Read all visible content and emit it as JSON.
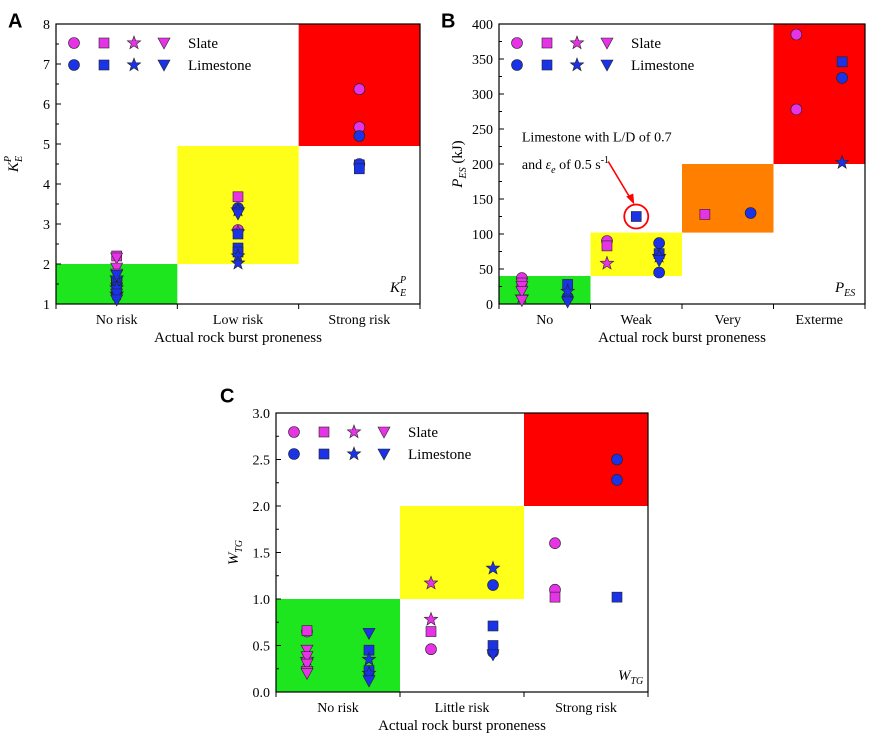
{
  "colors": {
    "slate": "#e633e6",
    "limestone": "#1a33e6",
    "green": "#1ee61e",
    "yellow": "#ffff1a",
    "orange": "#ff8000",
    "red": "#ff0000",
    "annotation": "#ff0000"
  },
  "legend_labels": [
    "Slate",
    "Limestone"
  ],
  "x_title": "Actual rock burst proneness",
  "chart_data": [
    {
      "panel": "A",
      "type": "scatter",
      "categories": [
        "No risk",
        "Low risk",
        "Strong risk"
      ],
      "ylim": [
        1,
        8
      ],
      "yticks": [
        "1",
        "2",
        "3",
        "4",
        "5",
        "6",
        "7",
        "8"
      ],
      "ytick_values": [
        1,
        2,
        3,
        4,
        5,
        6,
        7,
        8
      ],
      "ylabel_base": "K",
      "ylabel_sub": "E",
      "ylabel_sup": "P",
      "corner_base": "K",
      "corner_sub": "E",
      "corner_sup": "P",
      "regions": [
        {
          "x0": 0,
          "x1": 1,
          "y0": 1,
          "y1": 2,
          "color": "green"
        },
        {
          "x0": 1,
          "x1": 2,
          "y0": 2,
          "y1": 4.95,
          "color": "yellow"
        },
        {
          "x0": 2,
          "x1": 3,
          "y0": 4.95,
          "y1": 8,
          "color": "red"
        }
      ],
      "series": [
        {
          "name": "Slate",
          "marker": "circle",
          "points": [
            [
              0.5,
              1.6
            ],
            [
              1.5,
              2.85
            ],
            [
              2.5,
              6.37
            ],
            [
              2.5,
              5.42
            ]
          ]
        },
        {
          "name": "Slate",
          "marker": "square",
          "points": [
            [
              0.5,
              2.2
            ],
            [
              1.5,
              3.68
            ],
            [
              2.5,
              4.48
            ]
          ]
        },
        {
          "name": "Slate",
          "marker": "star",
          "points": [
            [
              0.5,
              1.25
            ],
            [
              1.5,
              3.35
            ],
            [
              1.5,
              2.8
            ]
          ]
        },
        {
          "name": "Slate",
          "marker": "triangle",
          "points": [
            [
              0.5,
              2.15
            ],
            [
              0.5,
              1.9
            ],
            [
              0.5,
              1.75
            ],
            [
              0.5,
              1.55
            ],
            [
              0.5,
              1.4
            ],
            [
              0.5,
              1.15
            ]
          ]
        },
        {
          "name": "Limestone",
          "marker": "circle",
          "points": [
            [
              1.5,
              3.4
            ],
            [
              2.5,
              5.2
            ],
            [
              2.5,
              4.5
            ],
            [
              0.5,
              1.5
            ]
          ]
        },
        {
          "name": "Limestone",
          "marker": "square",
          "points": [
            [
              0.5,
              1.55
            ],
            [
              0.5,
              1.35
            ],
            [
              1.5,
              2.75
            ],
            [
              1.5,
              2.4
            ],
            [
              1.5,
              2.3
            ],
            [
              2.5,
              4.38
            ]
          ]
        },
        {
          "name": "Limestone",
          "marker": "star",
          "points": [
            [
              0.5,
              1.65
            ],
            [
              0.5,
              1.4
            ],
            [
              1.5,
              3.35
            ],
            [
              1.5,
              2.2
            ],
            [
              1.5,
              2.02
            ]
          ]
        },
        {
          "name": "Limestone",
          "marker": "triangle",
          "points": [
            [
              0.5,
              1.72
            ],
            [
              0.5,
              1.25
            ],
            [
              0.5,
              1.1
            ],
            [
              1.5,
              3.25
            ]
          ]
        }
      ]
    },
    {
      "panel": "B",
      "type": "scatter",
      "categories": [
        "No",
        "Weak",
        "Very",
        "Exterme"
      ],
      "ylim": [
        0,
        400
      ],
      "yticks": [
        "0",
        "50",
        "100",
        "150",
        "200",
        "250",
        "300",
        "350",
        "400"
      ],
      "ytick_values": [
        0,
        50,
        100,
        150,
        200,
        250,
        300,
        350,
        400
      ],
      "ylabel_base": "P",
      "ylabel_sub": "ES",
      "ylabel_unit": " (kJ)",
      "corner_base": "P",
      "corner_sub": "ES",
      "annotation": {
        "line1": "Limestone with L/D of 0.7",
        "line2_pre": "and ",
        "line2_sym": "ε",
        "line2_sub": "e",
        "line2_mid": " of 0.5 s",
        "line2_sup": "-1",
        "target": [
          1.5,
          125
        ]
      },
      "regions": [
        {
          "x0": 0,
          "x1": 1,
          "y0": 0,
          "y1": 40,
          "color": "green"
        },
        {
          "x0": 1,
          "x1": 2,
          "y0": 40,
          "y1": 102,
          "color": "yellow"
        },
        {
          "x0": 2,
          "x1": 3,
          "y0": 102,
          "y1": 200,
          "color": "orange"
        },
        {
          "x0": 3,
          "x1": 4,
          "y0": 200,
          "y1": 400,
          "color": "red"
        }
      ],
      "series": [
        {
          "name": "Slate",
          "marker": "circle",
          "points": [
            [
              0.25,
              37
            ],
            [
              1.18,
              90
            ],
            [
              3.25,
              385
            ],
            [
              3.25,
              278
            ]
          ]
        },
        {
          "name": "Slate",
          "marker": "square",
          "points": [
            [
              0.25,
              30
            ],
            [
              1.18,
              83
            ],
            [
              2.25,
              128
            ]
          ]
        },
        {
          "name": "Slate",
          "marker": "star",
          "points": [
            [
              0.25,
              10
            ],
            [
              1.18,
              58
            ]
          ]
        },
        {
          "name": "Slate",
          "marker": "triangle",
          "points": [
            [
              0.25,
              25
            ],
            [
              0.25,
              18
            ],
            [
              0.25,
              5
            ]
          ]
        },
        {
          "name": "Limestone",
          "marker": "circle",
          "points": [
            [
              0.75,
              10
            ],
            [
              1.75,
              87
            ],
            [
              1.75,
              45
            ],
            [
              2.75,
              130
            ],
            [
              3.75,
              323
            ]
          ]
        },
        {
          "name": "Limestone",
          "marker": "square",
          "points": [
            [
              0.75,
              28
            ],
            [
              1.5,
              125
            ],
            [
              1.75,
              72
            ],
            [
              3.75,
              346
            ]
          ]
        },
        {
          "name": "Limestone",
          "marker": "star",
          "points": [
            [
              0.75,
              18
            ],
            [
              1.75,
              68
            ],
            [
              3.75,
              202
            ]
          ]
        },
        {
          "name": "Limestone",
          "marker": "triangle",
          "points": [
            [
              0.75,
              3
            ],
            [
              1.75,
              62
            ]
          ]
        }
      ]
    },
    {
      "panel": "C",
      "type": "scatter",
      "categories": [
        "No risk",
        "Little risk",
        "Strong risk"
      ],
      "ylim": [
        0,
        3
      ],
      "yticks": [
        "0.0",
        "0.5",
        "1.0",
        "1.5",
        "2.0",
        "2.5",
        "3.0"
      ],
      "ytick_values": [
        0,
        0.5,
        1,
        1.5,
        2,
        2.5,
        3
      ],
      "ylabel_base": "W",
      "ylabel_sub": "TG",
      "corner_base": "W",
      "corner_sub": "TG",
      "regions": [
        {
          "x0": 0,
          "x1": 1,
          "y0": 0,
          "y1": 1,
          "color": "green"
        },
        {
          "x0": 1,
          "x1": 2,
          "y0": 1,
          "y1": 2,
          "color": "yellow"
        },
        {
          "x0": 2,
          "x1": 3,
          "y0": 2,
          "y1": 3,
          "color": "red"
        }
      ],
      "series": [
        {
          "name": "Slate",
          "marker": "circle",
          "points": [
            [
              0.25,
              0.65
            ],
            [
              1.25,
              0.46
            ],
            [
              2.25,
              1.6
            ],
            [
              2.25,
              1.1
            ]
          ]
        },
        {
          "name": "Slate",
          "marker": "square",
          "points": [
            [
              0.25,
              0.66
            ],
            [
              1.25,
              0.65
            ],
            [
              2.25,
              1.02
            ]
          ]
        },
        {
          "name": "Slate",
          "marker": "star",
          "points": [
            [
              0.25,
              0.35
            ],
            [
              1.25,
              1.17
            ],
            [
              1.25,
              0.78
            ]
          ]
        },
        {
          "name": "Slate",
          "marker": "triangle",
          "points": [
            [
              0.25,
              0.45
            ],
            [
              0.25,
              0.38
            ],
            [
              0.25,
              0.3
            ],
            [
              0.25,
              0.22
            ],
            [
              0.25,
              0.2
            ]
          ]
        },
        {
          "name": "Limestone",
          "marker": "circle",
          "points": [
            [
              1.75,
              1.15
            ],
            [
              2.75,
              2.5
            ],
            [
              2.75,
              2.28
            ],
            [
              1.75,
              0.43
            ]
          ]
        },
        {
          "name": "Limestone",
          "marker": "square",
          "points": [
            [
              0.75,
              0.45
            ],
            [
              0.75,
              0.23
            ],
            [
              1.75,
              0.71
            ],
            [
              1.75,
              0.5
            ],
            [
              2.75,
              1.02
            ]
          ]
        },
        {
          "name": "Limestone",
          "marker": "star",
          "points": [
            [
              0.75,
              0.35
            ],
            [
              0.75,
              0.2
            ],
            [
              1.75,
              1.33
            ]
          ]
        },
        {
          "name": "Limestone",
          "marker": "triangle",
          "points": [
            [
              0.75,
              0.63
            ],
            [
              0.75,
              0.12
            ],
            [
              1.75,
              0.4
            ]
          ]
        }
      ]
    }
  ]
}
